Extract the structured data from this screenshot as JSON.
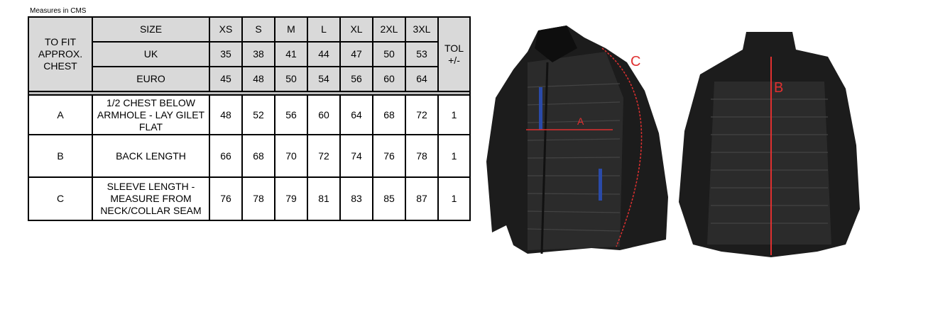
{
  "note": "Measures in CMS",
  "header": {
    "fit_label": "TO FIT APPROX. CHEST",
    "tol_label": "TOL +/-",
    "rows": [
      {
        "label": "SIZE",
        "values": [
          "XS",
          "S",
          "M",
          "L",
          "XL",
          "2XL",
          "3XL"
        ]
      },
      {
        "label": "UK",
        "values": [
          "35",
          "38",
          "41",
          "44",
          "47",
          "50",
          "53"
        ]
      },
      {
        "label": "EURO",
        "values": [
          "45",
          "48",
          "50",
          "54",
          "56",
          "60",
          "64"
        ]
      }
    ]
  },
  "measurements": [
    {
      "code": "A",
      "description": "1/2 CHEST BELOW ARMHOLE - LAY GILET FLAT",
      "values": [
        "48",
        "52",
        "56",
        "60",
        "64",
        "68",
        "72"
      ],
      "tol": "1"
    },
    {
      "code": "B",
      "description": "BACK LENGTH",
      "values": [
        "66",
        "68",
        "70",
        "72",
        "74",
        "76",
        "78"
      ],
      "tol": "1"
    },
    {
      "code": "C",
      "description": "SLEEVE LENGTH - MEASURE FROM NECK/COLLAR SEAM",
      "values": [
        "76",
        "78",
        "79",
        "81",
        "83",
        "85",
        "87"
      ],
      "tol": "1"
    }
  ],
  "images": {
    "front_labels": [
      "A",
      "C"
    ],
    "back_labels": [
      "B"
    ],
    "arrow_color": "#e03030",
    "accent_color": "#2a4aa8"
  }
}
